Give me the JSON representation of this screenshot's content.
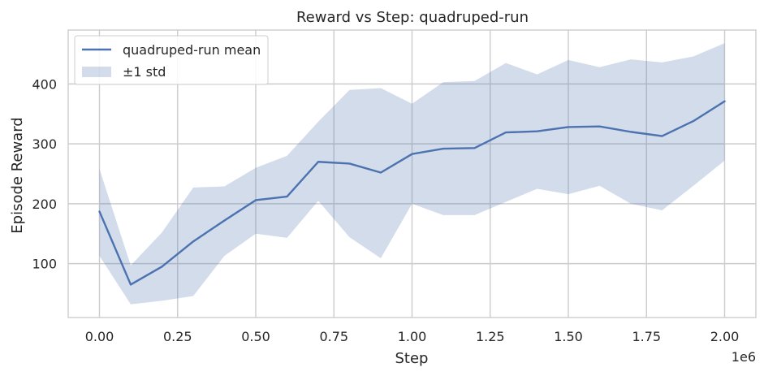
{
  "chart_data": {
    "type": "line",
    "title": "Reward vs Step: quadruped-run",
    "xlabel": "Step",
    "ylabel": "Episode Reward",
    "x_offset_label": "1e6",
    "xlim": [
      -0.1,
      2.1
    ],
    "ylim": [
      10,
      490
    ],
    "x_ticks": [
      0.0,
      0.25,
      0.5,
      0.75,
      1.0,
      1.25,
      1.5,
      1.75,
      2.0
    ],
    "x_tick_labels": [
      "0.00",
      "0.25",
      "0.50",
      "0.75",
      "1.00",
      "1.25",
      "1.50",
      "1.75",
      "2.00"
    ],
    "y_ticks": [
      100,
      200,
      300,
      400
    ],
    "y_tick_labels": [
      "100",
      "200",
      "300",
      "400"
    ],
    "grid": true,
    "legend_position": "top-left",
    "x": [
      0.0,
      0.1,
      0.2,
      0.3,
      0.4,
      0.5,
      0.6,
      0.7,
      0.8,
      0.9,
      1.0,
      1.1,
      1.2,
      1.3,
      1.4,
      1.5,
      1.6,
      1.7,
      1.8,
      1.9,
      2.0
    ],
    "series": [
      {
        "name": "quadruped-run mean",
        "kind": "line",
        "color": "#4c72b0",
        "values": [
          187,
          65,
          95,
          137,
          172,
          206,
          212,
          270,
          267,
          252,
          283,
          292,
          293,
          319,
          321,
          328,
          329,
          320,
          313,
          338,
          371
        ]
      },
      {
        "name": "±1 std",
        "kind": "band",
        "color": "#4c72b0",
        "upper": [
          258,
          97,
          152,
          227,
          229,
          260,
          280,
          337,
          390,
          393,
          367,
          403,
          405,
          435,
          416,
          440,
          428,
          441,
          436,
          446,
          468
        ],
        "lower": [
          113,
          32,
          38,
          46,
          113,
          150,
          143,
          205,
          144,
          109,
          200,
          181,
          181,
          203,
          225,
          216,
          230,
          200,
          189,
          230,
          272
        ]
      }
    ]
  }
}
